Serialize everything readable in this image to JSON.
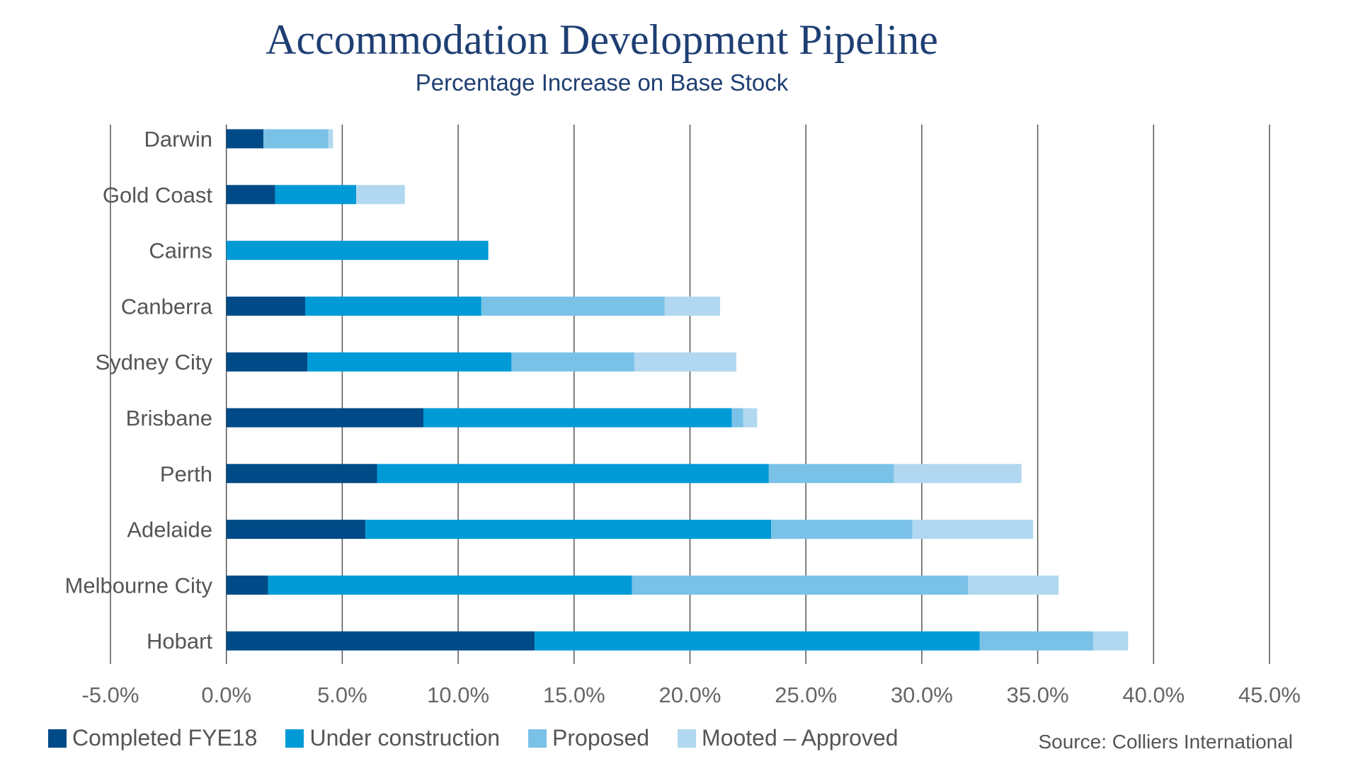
{
  "chart_data": {
    "type": "bar",
    "orientation": "horizontal",
    "stacked": true,
    "title": "Accommodation Development Pipeline",
    "subtitle": "Percentage Increase on Base Stock",
    "categories": [
      "Darwin",
      "Gold Coast",
      "Cairns",
      "Canberra",
      "Sydney City",
      "Brisbane",
      "Perth",
      "Adelaide",
      "Melbourne City",
      "Hobart"
    ],
    "series": [
      {
        "name": "Completed FYE18",
        "color": "#004b87",
        "values": [
          1.6,
          2.1,
          0.0,
          3.4,
          3.5,
          8.5,
          6.5,
          6.0,
          1.8,
          13.3
        ]
      },
      {
        "name": "Under construction",
        "color": "#009ad7",
        "values": [
          0.0,
          3.5,
          11.3,
          7.6,
          8.8,
          13.3,
          16.9,
          17.5,
          15.7,
          19.2
        ]
      },
      {
        "name": "Proposed",
        "color": "#7ac1e7",
        "values": [
          2.8,
          0.0,
          0.0,
          7.9,
          5.3,
          0.5,
          5.4,
          6.1,
          14.5,
          4.9
        ]
      },
      {
        "name": "Mooted – Approved",
        "color": "#b1d8f0",
        "values": [
          0.2,
          2.1,
          0.0,
          2.4,
          4.4,
          0.6,
          5.5,
          5.2,
          3.9,
          1.5
        ]
      }
    ],
    "xlim": [
      -5,
      45
    ],
    "ticks": [
      "-5.0%",
      "0.0%",
      "5.0%",
      "10.0%",
      "15.0%",
      "20.0%",
      "25.0%",
      "30.0%",
      "35.0%",
      "40.0%",
      "45.0%"
    ],
    "tick_values": [
      -5,
      0,
      5,
      10,
      15,
      20,
      25,
      30,
      35,
      40,
      45
    ],
    "grid": true,
    "legend_position": "bottom-left",
    "source": "Source: Colliers International"
  }
}
